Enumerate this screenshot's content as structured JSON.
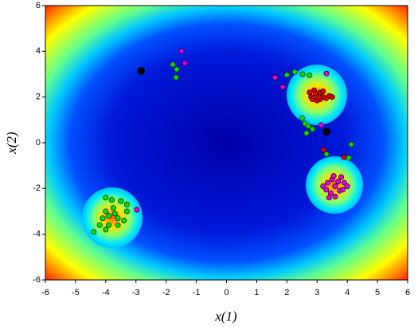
{
  "chart_data": {
    "type": "scatter",
    "xlabel": "x(1)",
    "ylabel": "x(2)",
    "xlim": [
      -6,
      6
    ],
    "ylim": [
      -6,
      6
    ],
    "xticks": [
      -6,
      -5,
      -4,
      -3,
      -2,
      -1,
      0,
      1,
      2,
      3,
      4,
      5,
      6
    ],
    "yticks": [
      -6,
      -4,
      -2,
      0,
      2,
      4,
      6
    ],
    "series": [
      {
        "color": "#00e000",
        "x": [
          -4.1,
          -3.9,
          -3.7,
          -3.6,
          -3.8,
          -3.5,
          -4.0,
          -3.3,
          -4.2,
          -4.0,
          -3.6,
          -3.4,
          -3.9,
          -4.4,
          -3.75,
          -3.3,
          -4.0,
          -1.78,
          -1.65,
          -1.67,
          2.0,
          2.26,
          2.52,
          2.75,
          2.5,
          2.6,
          2.71,
          2.65,
          3.31,
          4.05,
          4.13,
          2.85
        ],
        "y": [
          -3.3,
          -3.2,
          -3.1,
          -3.3,
          -2.5,
          -2.55,
          -2.4,
          -2.7,
          -3.6,
          -3.8,
          -3.6,
          -3.4,
          -3.6,
          -3.9,
          -2.85,
          -3.0,
          -3.0,
          3.42,
          3.21,
          2.86,
          2.97,
          3.1,
          3.0,
          2.95,
          1.08,
          0.84,
          0.73,
          0.42,
          -0.49,
          -0.66,
          -0.07,
          0.6
        ]
      },
      {
        "color": "#e000e0",
        "x": [
          3.2,
          3.3,
          3.5,
          3.6,
          3.7,
          3.8,
          3.9,
          3.45,
          3.6,
          3.75,
          4.0,
          3.55,
          3.35,
          3.85,
          3.4,
          -1.49,
          -1.38,
          1.6,
          1.86,
          3.13,
          3.31,
          -2.97
        ],
        "y": [
          -1.9,
          -2.05,
          -1.6,
          -1.9,
          -1.7,
          -1.5,
          -1.75,
          -2.2,
          -2.35,
          -2.1,
          -1.9,
          -1.45,
          -1.75,
          -2.05,
          -2.4,
          4.01,
          3.49,
          2.86,
          2.44,
          0.77,
          3.03,
          -2.93
        ]
      },
      {
        "color": "#e00000",
        "x": [
          2.9,
          3.0,
          3.1,
          2.8,
          3.2,
          3.3,
          3.0,
          3.1,
          2.95,
          3.4,
          2.85,
          3.2,
          3.05,
          3.5,
          2.75,
          3.21,
          3.89
        ],
        "y": [
          2.3,
          2.1,
          2.2,
          2.0,
          2.0,
          1.95,
          1.85,
          1.9,
          2.15,
          2.05,
          1.9,
          2.25,
          2.0,
          2.0,
          2.2,
          -0.31,
          -0.63
        ]
      },
      {
        "color": "#000000",
        "x": [
          -2.83,
          3.31
        ],
        "y": [
          3.14,
          0.49
        ]
      }
    ]
  }
}
